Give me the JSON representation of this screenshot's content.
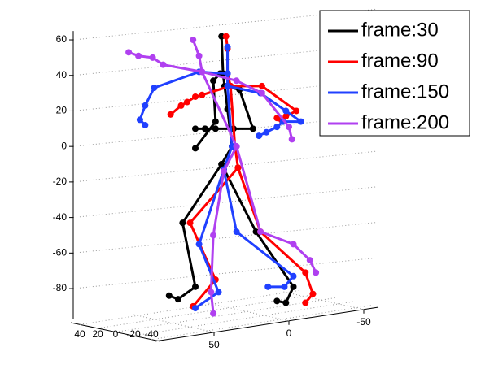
{
  "chart_data": {
    "type": "skeleton3d",
    "ylim": [
      -90,
      65
    ],
    "yticks": [
      60,
      40,
      20,
      0,
      -20,
      -40,
      -60,
      -80
    ],
    "xlim": [
      90,
      -60
    ],
    "xticks": [
      50,
      0,
      -50
    ],
    "zlim": [
      50,
      -50
    ],
    "zticks": [
      40,
      20,
      0,
      -20,
      -40
    ],
    "grid": true,
    "legend": "upper right",
    "series": [
      {
        "name": "frame:30",
        "color": "#000000",
        "lines": [
          {
            "x": [
              45,
              44,
              41,
              38
            ],
            "values": [
              62,
              41,
              21,
              0
            ]
          },
          {
            "x": [
              46,
              50.5,
              49,
              62.5
            ],
            "values": [
              41,
              37,
              14,
              -1
            ]
          },
          {
            "x": [
              43,
              33,
              24,
              37,
              49,
              56,
              62.5
            ],
            "values": [
              34,
              32,
              10,
              10,
              10,
              10,
              10
            ]
          },
          {
            "x": [
              38,
              45,
              71,
              62.5,
              74,
              80
            ],
            "values": [
              0,
              -10,
              -43,
              -79,
              -86,
              -84
            ]
          },
          {
            "x": [
              45,
              22,
              -3,
              2,
              8
            ],
            "values": [
              -10,
              -48,
              -79,
              -88,
              -87
            ]
          }
        ]
      },
      {
        "name": "frame:90",
        "color": "#ff0000",
        "lines": [
          {
            "x": [
              42,
              41,
              41,
              39,
              36
            ],
            "values": [
              62,
              55,
              41,
              34,
              0
            ]
          },
          {
            "x": [
              39,
              58,
              62.5,
              68,
              72,
              79
            ],
            "values": [
              34,
              29,
              28,
              25,
              23,
              18
            ]
          },
          {
            "x": [
              39,
              18,
              -5,
              2,
              5,
              8
            ],
            "values": [
              34,
              34,
              20,
              17,
              15,
              16
            ]
          },
          {
            "x": [
              36,
              34,
              66,
              49,
              64
            ],
            "values": [
              0,
              -12,
              -43,
              -75,
              -90
            ]
          },
          {
            "x": [
              34,
              19,
              -11,
              -16,
              -11
            ],
            "values": [
              -12,
              -48,
              -71,
              -83,
              -88
            ]
          }
        ]
      },
      {
        "name": "frame:150",
        "color": "#2040ff",
        "lines": [
          {
            "x": [
              41,
              41,
              41,
              38
            ],
            "values": [
              56,
              41,
              34,
              0
            ]
          },
          {
            "x": [
              41,
              60,
              90,
              96,
              99.5,
              96
            ],
            "values": [
              41,
              42,
              33,
              23,
              15,
              12
            ]
          },
          {
            "x": [
              41,
              19,
              2,
              -8,
              4,
              8,
              15,
              20
            ],
            "values": [
              34,
              30,
              20,
              14,
              14,
              11,
              8,
              6
            ]
          },
          {
            "x": [
              38,
              43.5,
              60,
              47,
              62.5
            ],
            "values": [
              0,
              -13,
              -55,
              -82,
              -91
            ]
          },
          {
            "x": [
              43.5,
              35,
              -3,
              3,
              14
            ],
            "values": [
              -13,
              -48,
              -73,
              -79,
              -79
            ]
          }
        ]
      },
      {
        "name": "frame:200",
        "color": "#b040f0",
        "lines": [
          {
            "x": [
              107,
              100.5,
              91,
              84,
              58,
              35,
              18,
              0,
              -2
            ],
            "values": [
              53,
              51,
              50,
              46,
              42,
              37,
              30,
              11,
              4
            ]
          },
          {
            "x": [
              64,
              60,
              58,
              35
            ],
            "values": [
              60,
              51,
              42,
              0
            ]
          },
          {
            "x": [
              35,
              43.5,
              50.5,
              52,
              50.5
            ],
            "values": [
              0,
              -14,
              -50,
              -82,
              -94
            ]
          },
          {
            "x": [
              35,
              19,
              -3,
              -14,
              -18
            ],
            "values": [
              0,
              -48,
              -55,
              -64,
              -71
            ]
          }
        ]
      }
    ]
  }
}
